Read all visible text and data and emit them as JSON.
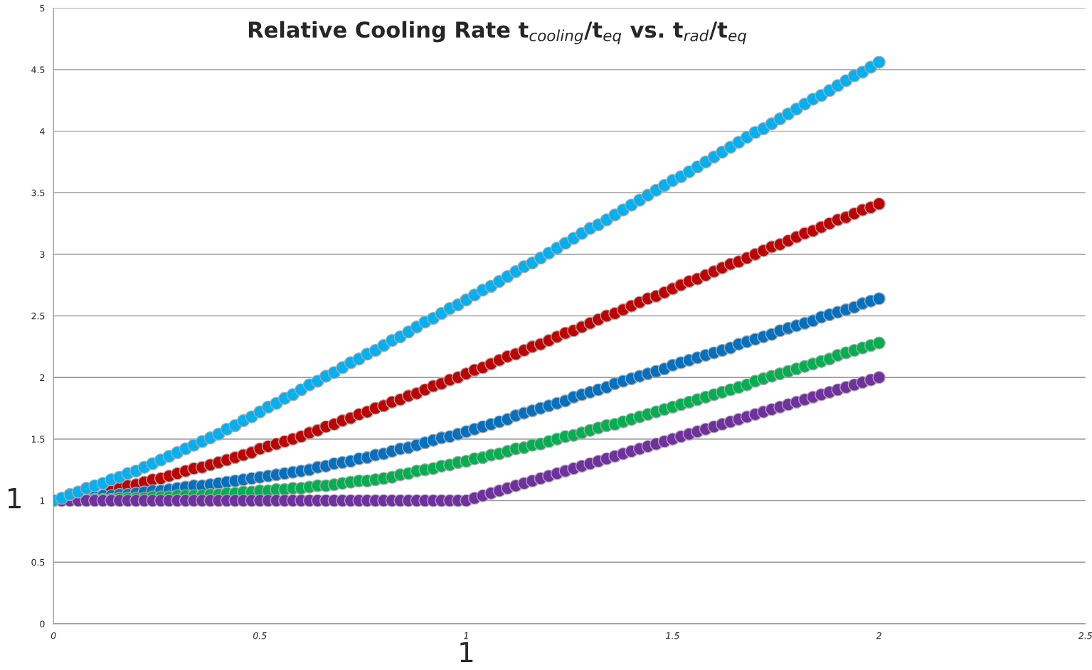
{
  "chart_data": {
    "type": "scatter",
    "title": "Relative Cooling Rate t$_{cooling}$/t$_{eq}$ vs. t$_{rad}$/t$_{eq}$",
    "x": [
      0,
      0.02,
      0.04,
      0.06,
      0.08,
      0.1,
      0.12,
      0.14,
      0.16,
      0.18,
      0.2,
      0.22,
      0.24,
      0.26,
      0.28,
      0.3,
      0.32,
      0.34,
      0.36,
      0.38,
      0.4,
      0.42,
      0.44,
      0.46,
      0.48,
      0.5,
      0.52,
      0.54,
      0.56,
      0.58,
      0.6,
      0.62,
      0.64,
      0.66,
      0.68,
      0.7,
      0.72,
      0.74,
      0.76,
      0.78,
      0.8,
      0.82,
      0.84,
      0.86,
      0.88,
      0.9,
      0.92,
      0.94,
      0.96,
      0.98,
      1,
      1.02,
      1.04,
      1.06,
      1.08,
      1.1,
      1.12,
      1.14,
      1.16,
      1.18,
      1.2,
      1.22,
      1.24,
      1.26,
      1.28,
      1.3,
      1.32,
      1.34,
      1.36,
      1.38,
      1.4,
      1.42,
      1.44,
      1.46,
      1.48,
      1.5,
      1.52,
      1.54,
      1.56,
      1.58,
      1.6,
      1.62,
      1.64,
      1.66,
      1.68,
      1.7,
      1.72,
      1.74,
      1.76,
      1.78,
      1.8,
      1.82,
      1.84,
      1.86,
      1.88,
      1.9,
      1.92,
      1.94,
      1.96,
      1.98,
      2
    ],
    "series": [
      {
        "color": "#c00000",
        "values": [
          null,
          null,
          null,
          null,
          null,
          null,
          null,
          1.09,
          1.1,
          1.12,
          1.13,
          1.15,
          1.17,
          1.18,
          1.2,
          1.22,
          1.24,
          1.26,
          1.27,
          1.29,
          1.31,
          1.33,
          1.35,
          1.37,
          1.39,
          1.42,
          1.44,
          1.46,
          1.48,
          1.5,
          1.52,
          1.55,
          1.57,
          1.6,
          1.62,
          1.65,
          1.67,
          1.7,
          1.72,
          1.75,
          1.77,
          1.8,
          1.82,
          1.85,
          1.87,
          1.9,
          1.93,
          1.95,
          1.98,
          2.0,
          2.03,
          2.06,
          2.08,
          2.11,
          2.14,
          2.17,
          2.19,
          2.22,
          2.25,
          2.27,
          2.3,
          2.33,
          2.36,
          2.38,
          2.41,
          2.44,
          2.47,
          2.5,
          2.52,
          2.55,
          2.58,
          2.61,
          2.64,
          2.66,
          2.69,
          2.72,
          2.75,
          2.78,
          2.8,
          2.83,
          2.86,
          2.89,
          2.92,
          2.94,
          2.97,
          3.0,
          3.03,
          3.06,
          3.08,
          3.11,
          3.14,
          3.17,
          3.19,
          3.22,
          3.25,
          3.28,
          3.3,
          3.33,
          3.36,
          3.38,
          3.41
        ]
      },
      {
        "color": "#0070c0",
        "values": [
          null,
          null,
          null,
          null,
          null,
          1.03,
          1.04,
          1.04,
          1.05,
          1.05,
          1.06,
          1.07,
          1.08,
          1.08,
          1.09,
          1.1,
          1.11,
          1.12,
          1.12,
          1.13,
          1.14,
          1.15,
          1.16,
          1.17,
          1.18,
          1.19,
          1.2,
          1.21,
          1.22,
          1.23,
          1.24,
          1.25,
          1.27,
          1.28,
          1.3,
          1.31,
          1.32,
          1.34,
          1.35,
          1.37,
          1.38,
          1.4,
          1.42,
          1.43,
          1.45,
          1.47,
          1.49,
          1.51,
          1.52,
          1.54,
          1.56,
          1.58,
          1.6,
          1.62,
          1.64,
          1.66,
          1.69,
          1.71,
          1.73,
          1.75,
          1.77,
          1.79,
          1.81,
          1.84,
          1.86,
          1.88,
          1.9,
          1.92,
          1.95,
          1.97,
          1.99,
          2.01,
          2.03,
          2.05,
          2.07,
          2.1,
          2.12,
          2.14,
          2.16,
          2.18,
          2.2,
          2.22,
          2.24,
          2.27,
          2.29,
          2.31,
          2.33,
          2.35,
          2.38,
          2.4,
          2.42,
          2.44,
          2.46,
          2.49,
          2.51,
          2.53,
          2.55,
          2.57,
          2.6,
          2.62,
          2.64
        ]
      },
      {
        "color": "#00b050",
        "values": [
          null,
          null,
          null,
          null,
          null,
          1.01,
          1.01,
          1.01,
          1.02,
          1.02,
          1.02,
          1.02,
          1.03,
          1.03,
          1.03,
          1.04,
          1.04,
          1.04,
          1.04,
          1.05,
          1.05,
          1.06,
          1.06,
          1.07,
          1.07,
          1.08,
          1.08,
          1.09,
          1.09,
          1.1,
          1.1,
          1.11,
          1.12,
          1.12,
          1.13,
          1.14,
          1.15,
          1.16,
          1.16,
          1.17,
          1.18,
          1.19,
          1.21,
          1.22,
          1.24,
          1.25,
          1.26,
          1.28,
          1.29,
          1.31,
          1.32,
          1.34,
          1.35,
          1.37,
          1.38,
          1.4,
          1.42,
          1.43,
          1.45,
          1.46,
          1.48,
          1.5,
          1.52,
          1.53,
          1.55,
          1.57,
          1.59,
          1.61,
          1.62,
          1.64,
          1.66,
          1.68,
          1.7,
          1.72,
          1.74,
          1.76,
          1.78,
          1.8,
          1.82,
          1.84,
          1.86,
          1.88,
          1.9,
          1.92,
          1.94,
          1.97,
          1.99,
          2.01,
          2.03,
          2.05,
          2.07,
          2.09,
          2.11,
          2.13,
          2.15,
          2.18,
          2.2,
          2.22,
          2.24,
          2.26,
          2.28
        ]
      },
      {
        "color": "#7030a0",
        "values": [
          1,
          1,
          1,
          1,
          1,
          1,
          1,
          1,
          1,
          1,
          1,
          1,
          1,
          1,
          1,
          1,
          1,
          1,
          1,
          1,
          1,
          1,
          1,
          1,
          1,
          1,
          1,
          1,
          1,
          1,
          1,
          1,
          1,
          1,
          1,
          1,
          1,
          1,
          1,
          1,
          1,
          1,
          1,
          1,
          1,
          1,
          1,
          1,
          1,
          1,
          1,
          1.02,
          1.04,
          1.06,
          1.08,
          1.1,
          1.12,
          1.14,
          1.16,
          1.18,
          1.2,
          1.22,
          1.24,
          1.26,
          1.28,
          1.3,
          1.32,
          1.34,
          1.36,
          1.38,
          1.4,
          1.42,
          1.44,
          1.46,
          1.48,
          1.5,
          1.52,
          1.54,
          1.56,
          1.58,
          1.6,
          1.62,
          1.64,
          1.66,
          1.68,
          1.7,
          1.72,
          1.74,
          1.76,
          1.78,
          1.8,
          1.82,
          1.84,
          1.86,
          1.88,
          1.9,
          1.92,
          1.94,
          1.96,
          1.98,
          2
        ]
      },
      {
        "color": "#00b0f0",
        "values": [
          1.0,
          1.02,
          1.05,
          1.07,
          1.1,
          1.12,
          1.14,
          1.17,
          1.19,
          1.22,
          1.24,
          1.27,
          1.3,
          1.33,
          1.36,
          1.39,
          1.42,
          1.45,
          1.48,
          1.51,
          1.54,
          1.58,
          1.61,
          1.65,
          1.68,
          1.72,
          1.76,
          1.79,
          1.83,
          1.86,
          1.9,
          1.94,
          1.97,
          2.01,
          2.04,
          2.08,
          2.12,
          2.15,
          2.19,
          2.22,
          2.26,
          2.3,
          2.33,
          2.37,
          2.41,
          2.45,
          2.48,
          2.52,
          2.56,
          2.59,
          2.63,
          2.67,
          2.71,
          2.74,
          2.78,
          2.82,
          2.86,
          2.9,
          2.93,
          2.97,
          3.01,
          3.05,
          3.09,
          3.13,
          3.17,
          3.21,
          3.24,
          3.28,
          3.32,
          3.36,
          3.4,
          3.44,
          3.48,
          3.52,
          3.56,
          3.6,
          3.63,
          3.67,
          3.71,
          3.75,
          3.79,
          3.83,
          3.87,
          3.91,
          3.95,
          3.99,
          4.02,
          4.06,
          4.1,
          4.14,
          4.18,
          4.22,
          4.26,
          4.29,
          4.33,
          4.37,
          4.41,
          4.45,
          4.48,
          4.52,
          4.56
        ]
      }
    ],
    "xlim": [
      0,
      2.5
    ],
    "xticks": [
      0,
      0.5,
      1,
      1.5,
      2,
      2.5
    ],
    "ylim": [
      0,
      5
    ],
    "yticks": [
      0,
      0.5,
      1,
      1.5,
      2,
      2.5,
      3,
      3.5,
      4,
      4.5,
      5
    ],
    "grid": "y",
    "legend": false,
    "marker": "circle",
    "annotations": [
      "1",
      "1"
    ]
  }
}
